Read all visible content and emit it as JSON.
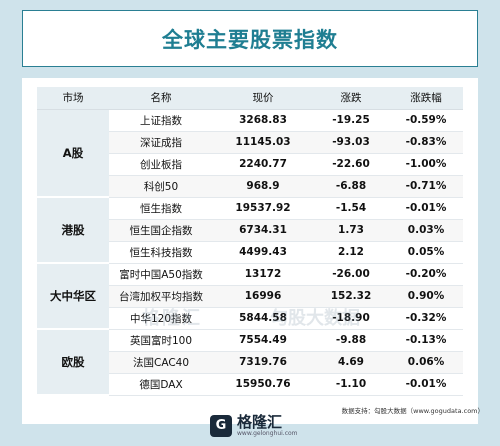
{
  "title": "全球主要股票指数",
  "headers": [
    "市场",
    "名称",
    "现价",
    "涨跌",
    "涨跌幅"
  ],
  "colors": {
    "up": "#d6232f",
    "down": "#1e9a3c",
    "accent": "#1f7e92"
  },
  "groups": [
    {
      "market": "A股",
      "rows": [
        {
          "name": "上证指数",
          "price": "3268.83",
          "change": "-19.25",
          "pct": "-0.59%",
          "dir": "down"
        },
        {
          "name": "深证成指",
          "price": "11145.03",
          "change": "-93.03",
          "pct": "-0.83%",
          "dir": "down"
        },
        {
          "name": "创业板指",
          "price": "2240.77",
          "change": "-22.60",
          "pct": "-1.00%",
          "dir": "down"
        },
        {
          "name": "科创50",
          "price": "968.9",
          "change": "-6.88",
          "pct": "-0.71%",
          "dir": "down"
        }
      ]
    },
    {
      "market": "港股",
      "rows": [
        {
          "name": "恒生指数",
          "price": "19537.92",
          "change": "-1.54",
          "pct": "-0.01%",
          "dir": "down"
        },
        {
          "name": "恒生国企指数",
          "price": "6734.31",
          "change": "1.73",
          "pct": "0.03%",
          "dir": "up"
        },
        {
          "name": "恒生科技指数",
          "price": "4499.43",
          "change": "2.12",
          "pct": "0.05%",
          "dir": "up"
        }
      ]
    },
    {
      "market": "大中华区",
      "rows": [
        {
          "name": "富时中国A50指数",
          "price": "13172",
          "change": "-26.00",
          "pct": "-0.20%",
          "dir": "down"
        },
        {
          "name": "台湾加权平均指数",
          "price": "16996",
          "change": "152.32",
          "pct": "0.90%",
          "dir": "up"
        },
        {
          "name": "中华120指数",
          "price": "5844.58",
          "change": "-18.90",
          "pct": "-0.32%",
          "dir": "down"
        }
      ]
    },
    {
      "market": "欧股",
      "rows": [
        {
          "name": "英国富时100",
          "price": "7554.49",
          "change": "-9.88",
          "pct": "-0.13%",
          "dir": "down"
        },
        {
          "name": "法国CAC40",
          "price": "7319.76",
          "change": "4.69",
          "pct": "0.06%",
          "dir": "up"
        },
        {
          "name": "德国DAX",
          "price": "15950.76",
          "change": "-1.10",
          "pct": "-0.01%",
          "dir": "down"
        }
      ]
    }
  ],
  "watermark": {
    "left": "格隆汇",
    "right": "勾股大数据",
    "url": "WWW.GOGUDATA.COM"
  },
  "source": "数据支持：勾股大数据（www.gogudata.com）",
  "logo": {
    "mark": "G",
    "name": "格隆汇",
    "sub": "www.gelonghui.com"
  }
}
